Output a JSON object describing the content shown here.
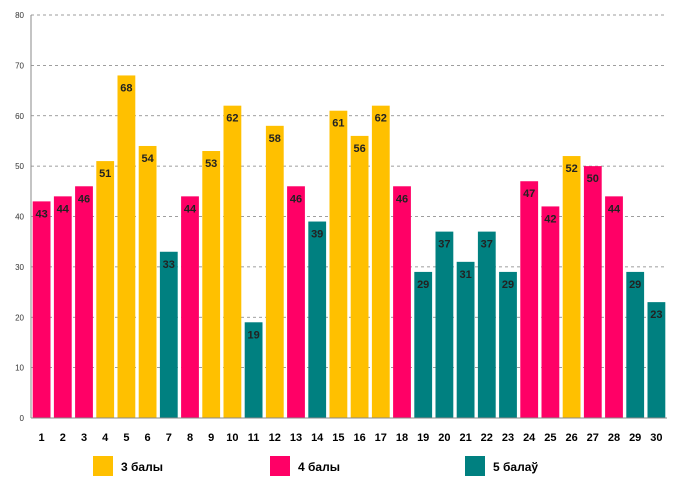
{
  "chart_data": {
    "type": "bar",
    "categories": [
      "1",
      "2",
      "3",
      "4",
      "5",
      "6",
      "7",
      "8",
      "9",
      "10",
      "11",
      "12",
      "13",
      "14",
      "15",
      "16",
      "17",
      "18",
      "19",
      "20",
      "21",
      "22",
      "23",
      "24",
      "25",
      "26",
      "27",
      "28",
      "29",
      "30"
    ],
    "values": [
      43,
      44,
      46,
      51,
      68,
      54,
      33,
      44,
      53,
      62,
      19,
      58,
      46,
      39,
      61,
      56,
      62,
      46,
      29,
      37,
      31,
      37,
      29,
      47,
      42,
      52,
      50,
      44,
      29,
      23
    ],
    "groups": [
      1,
      1,
      1,
      0,
      0,
      0,
      2,
      1,
      0,
      0,
      2,
      0,
      1,
      2,
      0,
      0,
      0,
      1,
      2,
      2,
      2,
      2,
      2,
      1,
      1,
      0,
      1,
      1,
      2,
      2
    ],
    "legend": [
      {
        "label": "3 балы",
        "color": "#FFC000"
      },
      {
        "label": "4 балы",
        "color": "#FF0066"
      },
      {
        "label": "5 балаў",
        "color": "#008080"
      }
    ],
    "ylim": [
      0,
      80
    ],
    "yticks": [
      0,
      10,
      20,
      30,
      40,
      50,
      60,
      70,
      80
    ],
    "grid": true,
    "legend_position": "bottom",
    "data_labels": true
  }
}
